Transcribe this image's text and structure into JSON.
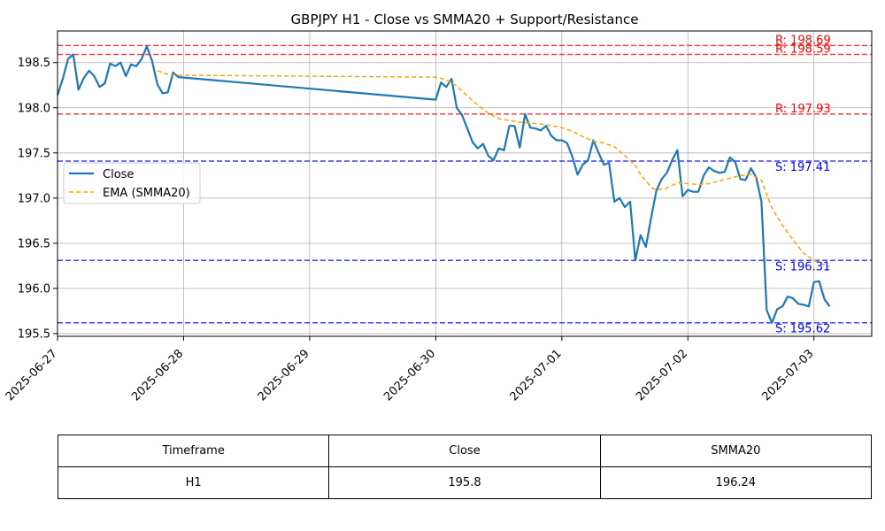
{
  "chart_data": {
    "type": "line",
    "title": "GBPJPY H1 - Close vs SMMA20 + Support/Resistance",
    "xlabel": "",
    "ylabel": "",
    "xlim": [
      "2025-06-27 00:00",
      "2025-07-03 11:00"
    ],
    "ylim": [
      195.47,
      198.85
    ],
    "x_ticks": [
      "2025-06-27",
      "2025-06-28",
      "2025-06-29",
      "2025-06-30",
      "2025-07-01",
      "2025-07-02",
      "2025-07-03"
    ],
    "y_ticks": [
      "195.5",
      "196.0",
      "196.5",
      "197.0",
      "197.5",
      "198.0",
      "198.5"
    ],
    "grid": true,
    "legend": {
      "position": "center-left",
      "entries": [
        "Close",
        "EMA (SMMA20)"
      ]
    },
    "series": [
      {
        "name": "Close",
        "color": "#1f77b4",
        "style": "solid",
        "points": [
          [
            "2025-06-27 00:00",
            198.14
          ],
          [
            "2025-06-27 01:00",
            198.32
          ],
          [
            "2025-06-27 02:00",
            198.54
          ],
          [
            "2025-06-27 03:00",
            198.59
          ],
          [
            "2025-06-27 04:00",
            198.2
          ],
          [
            "2025-06-27 05:00",
            198.33
          ],
          [
            "2025-06-27 06:00",
            198.41
          ],
          [
            "2025-06-27 07:00",
            198.35
          ],
          [
            "2025-06-27 08:00",
            198.23
          ],
          [
            "2025-06-27 09:00",
            198.27
          ],
          [
            "2025-06-27 10:00",
            198.49
          ],
          [
            "2025-06-27 11:00",
            198.46
          ],
          [
            "2025-06-27 12:00",
            198.5
          ],
          [
            "2025-06-27 13:00",
            198.35
          ],
          [
            "2025-06-27 14:00",
            198.48
          ],
          [
            "2025-06-27 15:00",
            198.46
          ],
          [
            "2025-06-27 16:00",
            198.54
          ],
          [
            "2025-06-27 17:00",
            198.68
          ],
          [
            "2025-06-27 18:00",
            198.52
          ],
          [
            "2025-06-27 19:00",
            198.26
          ],
          [
            "2025-06-27 20:00",
            198.16
          ],
          [
            "2025-06-27 21:00",
            198.17
          ],
          [
            "2025-06-27 22:00",
            198.39
          ],
          [
            "2025-06-27 23:00",
            198.34
          ],
          [
            "2025-06-30 00:00",
            198.09
          ],
          [
            "2025-06-30 01:00",
            198.28
          ],
          [
            "2025-06-30 02:00",
            198.23
          ],
          [
            "2025-06-30 03:00",
            198.32
          ],
          [
            "2025-06-30 04:00",
            198.0
          ],
          [
            "2025-06-30 05:00",
            197.92
          ],
          [
            "2025-06-30 06:00",
            197.77
          ],
          [
            "2025-06-30 07:00",
            197.62
          ],
          [
            "2025-06-30 08:00",
            197.55
          ],
          [
            "2025-06-30 09:00",
            197.6
          ],
          [
            "2025-06-30 10:00",
            197.47
          ],
          [
            "2025-06-30 11:00",
            197.42
          ],
          [
            "2025-06-30 12:00",
            197.55
          ],
          [
            "2025-06-30 13:00",
            197.53
          ],
          [
            "2025-06-30 14:00",
            197.8
          ],
          [
            "2025-06-30 15:00",
            197.8
          ],
          [
            "2025-06-30 16:00",
            197.56
          ],
          [
            "2025-06-30 17:00",
            197.93
          ],
          [
            "2025-06-30 18:00",
            197.78
          ],
          [
            "2025-06-30 19:00",
            197.77
          ],
          [
            "2025-06-30 20:00",
            197.75
          ],
          [
            "2025-06-30 21:00",
            197.8
          ],
          [
            "2025-06-30 22:00",
            197.69
          ],
          [
            "2025-06-30 23:00",
            197.64
          ],
          [
            "2025-07-01 00:00",
            197.64
          ],
          [
            "2025-07-01 01:00",
            197.61
          ],
          [
            "2025-07-01 02:00",
            197.46
          ],
          [
            "2025-07-01 03:00",
            197.26
          ],
          [
            "2025-07-01 04:00",
            197.37
          ],
          [
            "2025-07-01 05:00",
            197.42
          ],
          [
            "2025-07-01 06:00",
            197.64
          ],
          [
            "2025-07-01 07:00",
            197.5
          ],
          [
            "2025-07-01 08:00",
            197.37
          ],
          [
            "2025-07-01 09:00",
            197.39
          ],
          [
            "2025-07-01 10:00",
            196.96
          ],
          [
            "2025-07-01 11:00",
            197.0
          ],
          [
            "2025-07-01 12:00",
            196.9
          ],
          [
            "2025-07-01 13:00",
            196.96
          ],
          [
            "2025-07-01 14:00",
            196.31
          ],
          [
            "2025-07-01 15:00",
            196.59
          ],
          [
            "2025-07-01 16:00",
            196.46
          ],
          [
            "2025-07-01 17:00",
            196.78
          ],
          [
            "2025-07-01 18:00",
            197.08
          ],
          [
            "2025-07-01 19:00",
            197.21
          ],
          [
            "2025-07-01 20:00",
            197.28
          ],
          [
            "2025-07-01 21:00",
            197.42
          ],
          [
            "2025-07-01 22:00",
            197.53
          ],
          [
            "2025-07-01 23:00",
            197.02
          ],
          [
            "2025-07-02 00:00",
            197.09
          ],
          [
            "2025-07-02 01:00",
            197.07
          ],
          [
            "2025-07-02 02:00",
            197.07
          ],
          [
            "2025-07-02 03:00",
            197.25
          ],
          [
            "2025-07-02 04:00",
            197.34
          ],
          [
            "2025-07-02 05:00",
            197.3
          ],
          [
            "2025-07-02 06:00",
            197.28
          ],
          [
            "2025-07-02 07:00",
            197.29
          ],
          [
            "2025-07-02 08:00",
            197.45
          ],
          [
            "2025-07-02 09:00",
            197.4
          ],
          [
            "2025-07-02 10:00",
            197.21
          ],
          [
            "2025-07-02 11:00",
            197.2
          ],
          [
            "2025-07-02 12:00",
            197.33
          ],
          [
            "2025-07-02 13:00",
            197.23
          ],
          [
            "2025-07-02 14:00",
            196.96
          ],
          [
            "2025-07-02 15:00",
            195.76
          ],
          [
            "2025-07-02 16:00",
            195.62
          ],
          [
            "2025-07-02 17:00",
            195.77
          ],
          [
            "2025-07-02 18:00",
            195.8
          ],
          [
            "2025-07-02 19:00",
            195.91
          ],
          [
            "2025-07-02 20:00",
            195.89
          ],
          [
            "2025-07-02 21:00",
            195.83
          ],
          [
            "2025-07-02 22:00",
            195.82
          ],
          [
            "2025-07-02 23:00",
            195.8
          ],
          [
            "2025-07-03 00:00",
            196.07
          ],
          [
            "2025-07-03 01:00",
            196.08
          ],
          [
            "2025-07-03 02:00",
            195.88
          ],
          [
            "2025-07-03 03:00",
            195.8
          ]
        ]
      },
      {
        "name": "EMA (SMMA20)",
        "color": "#ffa500",
        "style": "dashed",
        "points": [
          [
            "2025-06-27 19:00",
            198.41
          ],
          [
            "2025-06-27 20:00",
            198.39
          ],
          [
            "2025-06-27 21:00",
            198.37
          ],
          [
            "2025-06-27 23:00",
            198.36
          ],
          [
            "2025-06-30 00:00",
            198.34
          ],
          [
            "2025-06-30 02:00",
            198.31
          ],
          [
            "2025-06-30 04:00",
            198.24
          ],
          [
            "2025-06-30 06:00",
            198.13
          ],
          [
            "2025-06-30 08:00",
            198.03
          ],
          [
            "2025-06-30 10:00",
            197.94
          ],
          [
            "2025-06-30 12:00",
            197.88
          ],
          [
            "2025-06-30 14:00",
            197.86
          ],
          [
            "2025-06-30 16:00",
            197.84
          ],
          [
            "2025-06-30 18:00",
            197.83
          ],
          [
            "2025-06-30 20:00",
            197.82
          ],
          [
            "2025-06-30 22:00",
            197.8
          ],
          [
            "2025-07-01 00:00",
            197.78
          ],
          [
            "2025-07-01 02:00",
            197.74
          ],
          [
            "2025-07-01 04:00",
            197.68
          ],
          [
            "2025-07-01 06:00",
            197.63
          ],
          [
            "2025-07-01 08:00",
            197.61
          ],
          [
            "2025-07-01 10:00",
            197.57
          ],
          [
            "2025-07-01 12:00",
            197.47
          ],
          [
            "2025-07-01 14:00",
            197.36
          ],
          [
            "2025-07-01 15:00",
            197.26
          ],
          [
            "2025-07-01 16:00",
            197.19
          ],
          [
            "2025-07-01 17:00",
            197.12
          ],
          [
            "2025-07-01 18:00",
            197.09
          ],
          [
            "2025-07-01 20:00",
            197.11
          ],
          [
            "2025-07-01 22:00",
            197.17
          ],
          [
            "2025-07-02 00:00",
            197.16
          ],
          [
            "2025-07-02 02:00",
            197.15
          ],
          [
            "2025-07-02 04:00",
            197.16
          ],
          [
            "2025-07-02 06:00",
            197.19
          ],
          [
            "2025-07-02 08:00",
            197.22
          ],
          [
            "2025-07-02 10:00",
            197.25
          ],
          [
            "2025-07-02 12:00",
            197.26
          ],
          [
            "2025-07-02 14:00",
            197.2
          ],
          [
            "2025-07-02 15:00",
            197.04
          ],
          [
            "2025-07-02 16:00",
            196.89
          ],
          [
            "2025-07-02 18:00",
            196.7
          ],
          [
            "2025-07-02 20:00",
            196.54
          ],
          [
            "2025-07-02 22:00",
            196.39
          ],
          [
            "2025-07-03 00:00",
            196.31
          ],
          [
            "2025-07-03 02:00",
            196.26
          ],
          [
            "2025-07-03 03:00",
            196.24
          ]
        ]
      }
    ],
    "levels": [
      {
        "kind": "resistance",
        "value": 198.69,
        "label": "R: 198.69",
        "color": "#ff0000"
      },
      {
        "kind": "resistance",
        "value": 198.59,
        "label": "R: 198.59",
        "color": "#ff0000"
      },
      {
        "kind": "resistance",
        "value": 197.93,
        "label": "R: 197.93",
        "color": "#ff0000"
      },
      {
        "kind": "support",
        "value": 197.41,
        "label": "S: 197.41",
        "color": "#0000ff"
      },
      {
        "kind": "support",
        "value": 196.31,
        "label": "S: 196.31",
        "color": "#0000ff"
      },
      {
        "kind": "support",
        "value": 195.62,
        "label": "S: 195.62",
        "color": "#0000ff"
      }
    ]
  },
  "table": {
    "headers": [
      "Timeframe",
      "Close",
      "SMMA20"
    ],
    "rows": [
      [
        "H1",
        "195.8",
        "196.24"
      ]
    ]
  }
}
